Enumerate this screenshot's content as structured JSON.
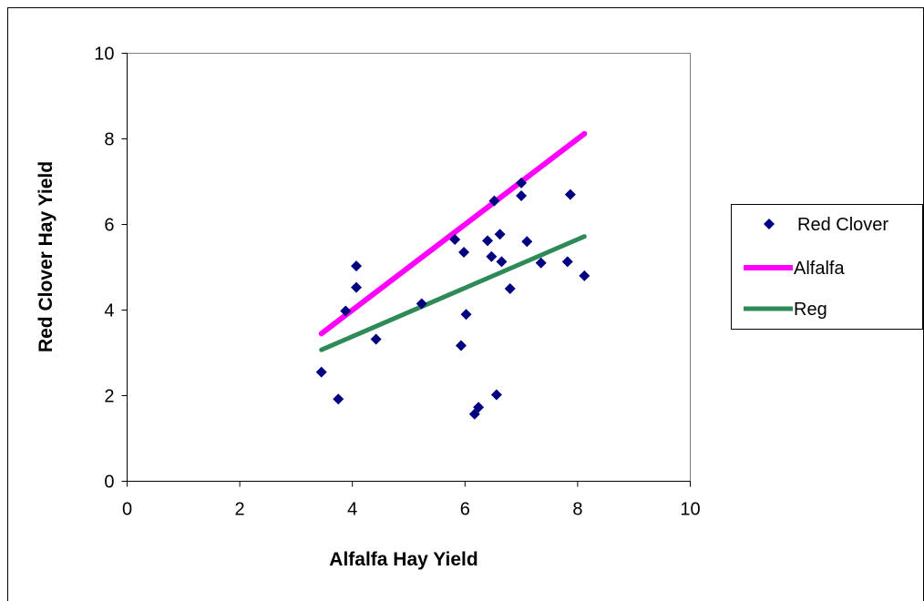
{
  "chart_data": {
    "type": "scatter",
    "title": "",
    "xlabel": "Alfalfa Hay Yield",
    "ylabel": "Red Clover Hay Yield",
    "xlim": [
      0,
      10
    ],
    "ylim": [
      0,
      10
    ],
    "xticks": [
      0,
      2,
      4,
      6,
      8,
      10
    ],
    "yticks": [
      0,
      2,
      4,
      6,
      8,
      10
    ],
    "grid": false,
    "legend_position": "right",
    "series": [
      {
        "name": "Red Clover",
        "kind": "scatter",
        "marker": "diamond",
        "color": "#000080",
        "points": [
          [
            3.45,
            2.55
          ],
          [
            3.75,
            1.92
          ],
          [
            3.88,
            3.98
          ],
          [
            4.07,
            5.03
          ],
          [
            4.07,
            4.53
          ],
          [
            4.42,
            3.32
          ],
          [
            5.23,
            4.15
          ],
          [
            5.82,
            5.65
          ],
          [
            5.93,
            3.17
          ],
          [
            5.98,
            5.35
          ],
          [
            6.02,
            3.9
          ],
          [
            6.17,
            1.57
          ],
          [
            6.24,
            1.73
          ],
          [
            6.4,
            5.62
          ],
          [
            6.47,
            5.25
          ],
          [
            6.52,
            6.55
          ],
          [
            6.56,
            2.02
          ],
          [
            6.62,
            5.77
          ],
          [
            6.65,
            5.13
          ],
          [
            6.8,
            4.5
          ],
          [
            7.0,
            6.97
          ],
          [
            7.0,
            6.67
          ],
          [
            7.1,
            5.6
          ],
          [
            7.35,
            5.1
          ],
          [
            7.82,
            5.13
          ],
          [
            7.87,
            6.7
          ],
          [
            8.12,
            4.8
          ]
        ]
      },
      {
        "name": "Alfalfa",
        "kind": "line",
        "color": "#ff00ff",
        "points": [
          [
            3.45,
            3.45
          ],
          [
            8.12,
            8.12
          ]
        ]
      },
      {
        "name": "Reg",
        "kind": "line",
        "color": "#2e8b57",
        "points": [
          [
            3.45,
            3.07
          ],
          [
            8.12,
            5.72
          ]
        ]
      }
    ]
  }
}
